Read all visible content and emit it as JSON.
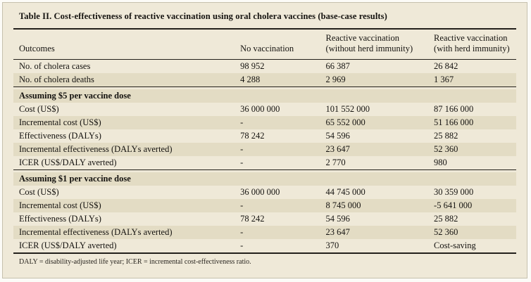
{
  "table": {
    "title": "Table II. Cost-effectiveness of reactive vaccination using oral cholera vaccines (base-case results)",
    "columns": [
      "Outcomes",
      "No vaccination",
      "Reactive vaccination\n(without herd immunity)",
      "Reactive vaccination\n(with herd immunity)"
    ],
    "sections": [
      {
        "rows": [
          {
            "label": "No. of cholera cases",
            "values": [
              "98 952",
              "66 387",
              "26 842"
            ]
          },
          {
            "label": "No. of cholera deaths",
            "values": [
              "4 288",
              "2 969",
              "1 367"
            ]
          }
        ]
      },
      {
        "header": "Assuming $5 per vaccine dose",
        "rows": [
          {
            "label": "Cost (US$)",
            "values": [
              "36 000 000",
              "101 552 000",
              "87 166 000"
            ]
          },
          {
            "label": "Incremental cost (US$)",
            "values": [
              "-",
              "65 552 000",
              "51 166 000"
            ]
          },
          {
            "label": "Effectiveness (DALYs)",
            "values": [
              "78 242",
              "54 596",
              "25 882"
            ]
          },
          {
            "label": "Incremental effectiveness (DALYs averted)",
            "values": [
              "-",
              "23 647",
              "52 360"
            ]
          },
          {
            "label": "ICER (US$/DALY averted)",
            "values": [
              "-",
              "2 770",
              "980"
            ]
          }
        ]
      },
      {
        "header": "Assuming $1 per vaccine dose",
        "rows": [
          {
            "label": "Cost (US$)",
            "values": [
              "36 000 000",
              "44 745 000",
              "30 359 000"
            ]
          },
          {
            "label": "Incremental cost (US$)",
            "values": [
              "-",
              "8 745 000",
              "-5 641 000"
            ]
          },
          {
            "label": "Effectiveness (DALYs)",
            "values": [
              "78 242",
              "54 596",
              "25 882"
            ]
          },
          {
            "label": "Incremental effectiveness (DALYs averted)",
            "values": [
              "-",
              "23 647",
              "52 360"
            ]
          },
          {
            "label": "ICER (US$/DALY averted)",
            "values": [
              "-",
              "370",
              "Cost-saving"
            ]
          }
        ]
      }
    ],
    "footnote": "DALY = disability-adjusted life year; ICER = incremental cost-effectiveness ratio."
  },
  "colors": {
    "panel_background": "#efe9d8",
    "row_shade": "#e3dcc4",
    "rule": "#23201b",
    "text": "#151310"
  }
}
